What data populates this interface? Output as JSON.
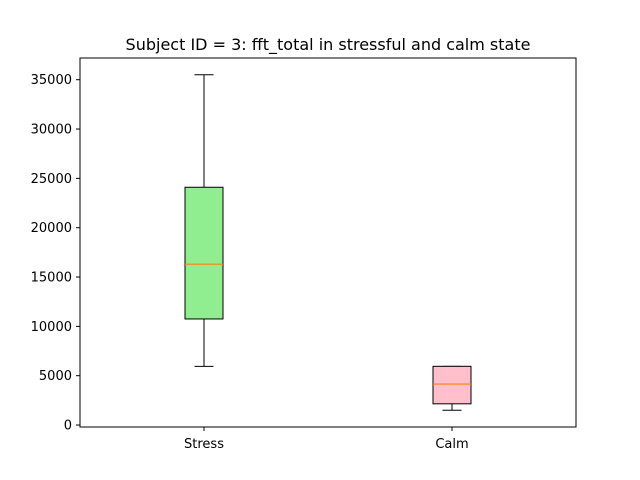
{
  "chart_data": {
    "type": "box",
    "title": "Subject ID = 3: fft_total in stressful and calm state",
    "xlabel": "",
    "ylabel": "",
    "ylim": [
      -200,
      37200
    ],
    "yticks": [
      0,
      5000,
      10000,
      15000,
      20000,
      25000,
      30000,
      35000
    ],
    "grid": false,
    "categories": [
      "Stress",
      "Calm"
    ],
    "boxes": [
      {
        "category": "Stress",
        "whisker_low": 5950,
        "q1": 10750,
        "median": 16300,
        "q3": 24100,
        "whisker_high": 35500,
        "fill": "#90ee90"
      },
      {
        "category": "Calm",
        "whisker_low": 1500,
        "q1": 2150,
        "median": 4150,
        "q3": 5950,
        "whisker_high": 5950,
        "fill": "#ffc0cb"
      }
    ],
    "median_color": "#ff7f0e"
  }
}
